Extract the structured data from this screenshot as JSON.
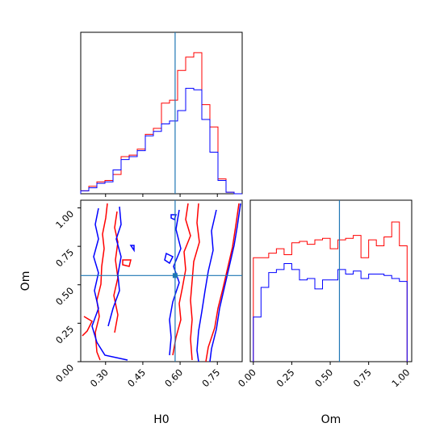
{
  "chart_data": {
    "type": "corner",
    "parameters": [
      "H0",
      "Om"
    ],
    "truth": {
      "H0": 0.58,
      "Om": 0.56
    },
    "colors": {
      "red": "#ff0000",
      "blue": "#0000ff",
      "truth": "#1f77b4",
      "axes": "#000000"
    },
    "panels": [
      {
        "id": "H0-marginal",
        "type": "histogram",
        "xlim": [
          0.2,
          0.85
        ],
        "xticks": [
          0.3,
          0.45,
          0.6,
          0.75
        ],
        "tick_labels_shown": false,
        "bins_edges": [
          0.2,
          0.2325,
          0.265,
          0.2975,
          0.33,
          0.3625,
          0.395,
          0.4275,
          0.46,
          0.4925,
          0.525,
          0.5575,
          0.59,
          0.6225,
          0.655,
          0.6875,
          0.72,
          0.7525,
          0.785,
          0.8175,
          0.85
        ],
        "series": [
          {
            "name": "",
            "color": "#ff0000",
            "counts": [
              0.02,
              0.05,
              0.08,
              0.09,
              0.13,
              0.25,
              0.26,
              0.3,
              0.4,
              0.44,
              0.61,
              0.63,
              0.83,
              0.92,
              0.95,
              0.6,
              0.45,
              0.1,
              0.01,
              0.0
            ]
          },
          {
            "name": "",
            "color": "#0000ff",
            "counts": [
              0.02,
              0.04,
              0.07,
              0.08,
              0.16,
              0.23,
              0.25,
              0.29,
              0.39,
              0.42,
              0.47,
              0.49,
              0.56,
              0.71,
              0.7,
              0.5,
              0.28,
              0.09,
              0.01,
              0.0
            ]
          }
        ],
        "ylim": [
          0,
          1.0
        ]
      },
      {
        "id": "H0-Om-joint",
        "type": "contour",
        "xlim": [
          0.2,
          0.85
        ],
        "ylim": [
          0.0,
          1.05
        ],
        "xlabel": "H0",
        "ylabel": "Om",
        "xticks": [
          "0.30",
          "0.45",
          "0.60",
          "0.75"
        ],
        "yticks": [
          "0.00",
          "0.25",
          "0.50",
          "0.75",
          "1.00"
        ]
      },
      {
        "id": "Om-marginal",
        "type": "histogram",
        "xlim": [
          -0.02,
          1.03
        ],
        "xticks": [
          "0.00",
          "0.25",
          "0.50",
          "0.75",
          "1.00"
        ],
        "xlabel": "Om",
        "bins_edges": [
          0.0,
          0.05,
          0.1,
          0.15,
          0.2,
          0.25,
          0.3,
          0.35,
          0.4,
          0.45,
          0.5,
          0.55,
          0.6,
          0.65,
          0.7,
          0.75,
          0.8,
          0.85,
          0.9,
          0.95,
          1.0
        ],
        "series": [
          {
            "name": "",
            "color": "#ff0000",
            "counts": [
              0.7,
              0.7,
              0.73,
              0.76,
              0.72,
              0.8,
              0.81,
              0.79,
              0.82,
              0.83,
              0.76,
              0.82,
              0.83,
              0.85,
              0.7,
              0.82,
              0.78,
              0.84,
              0.94,
              0.78
            ]
          },
          {
            "name": "",
            "color": "#0000ff",
            "counts": [
              0.3,
              0.5,
              0.6,
              0.62,
              0.66,
              0.62,
              0.55,
              0.56,
              0.49,
              0.55,
              0.55,
              0.62,
              0.59,
              0.61,
              0.56,
              0.59,
              0.59,
              0.58,
              0.56,
              0.54
            ]
          }
        ],
        "ylim": [
          0,
          1.0
        ]
      }
    ]
  }
}
